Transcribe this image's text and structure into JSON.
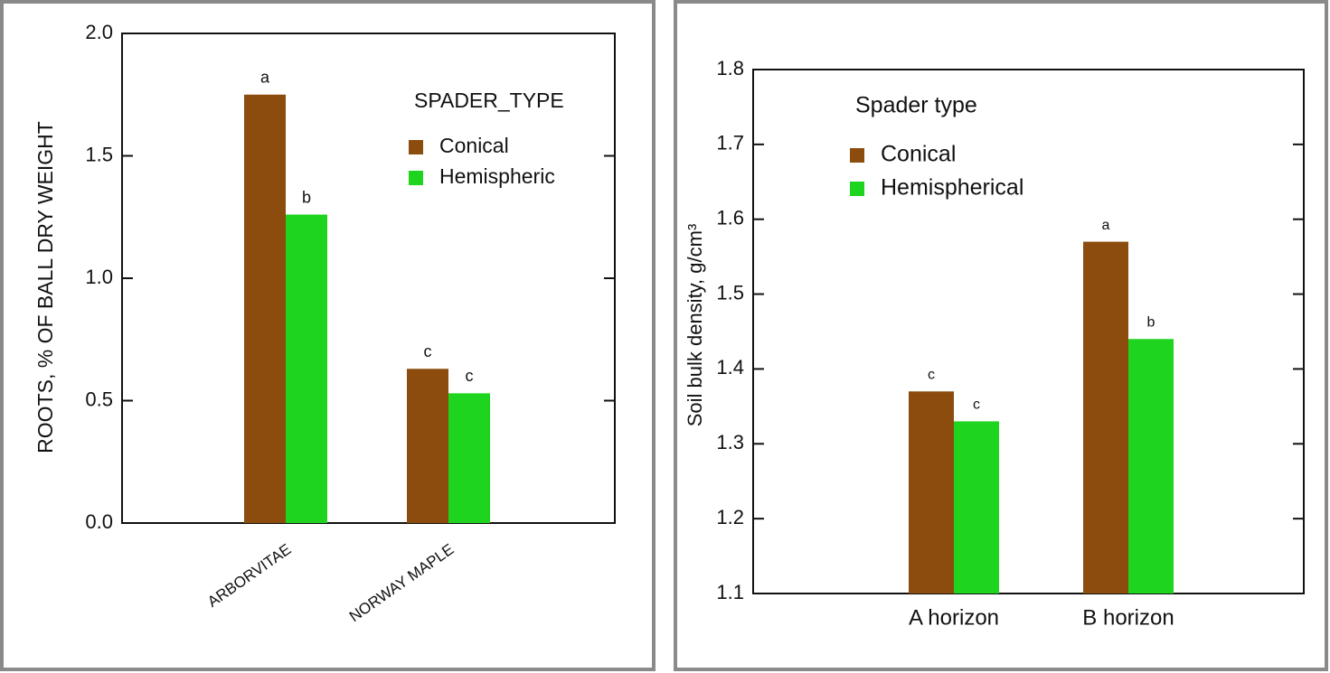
{
  "chart_data": [
    {
      "type": "bar",
      "ylabel": "ROOTS, % OF BALL DRY WEIGHT",
      "categories": [
        "ARBORVITAE",
        "NORWAY MAPLE"
      ],
      "legend_title": "SPADER_TYPE",
      "series": [
        {
          "name": "Conical",
          "color": "#8b4c0e",
          "values": [
            1.75,
            0.63
          ],
          "letters": [
            "a",
            "c"
          ]
        },
        {
          "name": "Hemispheric",
          "color": "#1ed41e",
          "values": [
            1.26,
            0.53
          ],
          "letters": [
            "b",
            "c"
          ]
        }
      ],
      "ylim": [
        0,
        2
      ],
      "yticks": [
        {
          "value": 0,
          "label": "0.0"
        },
        0.5,
        {
          "value": 1,
          "label": "1.0"
        },
        1.5,
        {
          "value": 2,
          "label": "2.0"
        }
      ]
    },
    {
      "type": "bar",
      "ylabel": "Soil bulk density, g/cm³",
      "categories": [
        "A horizon",
        "B horizon"
      ],
      "legend_title": "Spader type",
      "series": [
        {
          "name": "Conical",
          "color": "#8b4c0e",
          "values": [
            1.37,
            1.57
          ],
          "letters": [
            "c",
            "a"
          ]
        },
        {
          "name": "Hemispherical",
          "color": "#1ed41e",
          "values": [
            1.33,
            1.44
          ],
          "letters": [
            "c",
            "b"
          ]
        }
      ],
      "ylim": [
        1.1,
        1.8
      ],
      "yticks": [
        1.1,
        1.2,
        1.3,
        1.4,
        1.5,
        1.6,
        1.7,
        1.8
      ]
    }
  ]
}
